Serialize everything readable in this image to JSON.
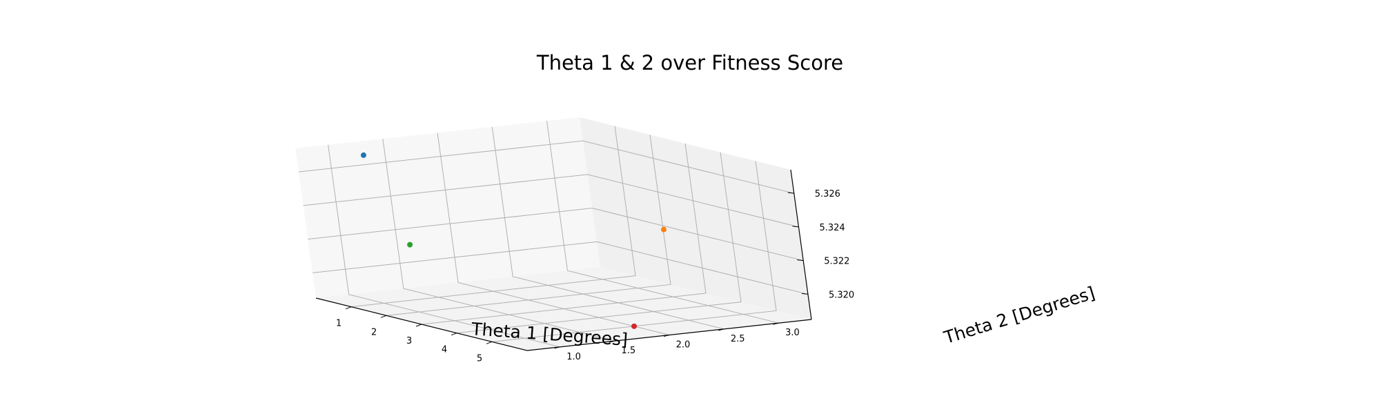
{
  "chart_data": {
    "type": "scatter",
    "projection": "3d",
    "title": "Theta 1 & 2 over Fitness Score",
    "xlabel": "Theta 1 [Degrees]",
    "ylabel": "Theta 2 [Degrees]",
    "zlabel": "",
    "xlim": [
      0,
      6
    ],
    "ylim": [
      0.7,
      3.3
    ],
    "zlim": [
      5.3185,
      5.3274
    ],
    "x_ticks": [
      1,
      2,
      3,
      4,
      5
    ],
    "y_ticks": [
      "1.0",
      "1.5",
      "2.0",
      "2.5",
      "3.0"
    ],
    "z_ticks": [
      "5.320",
      "5.322",
      "5.324",
      "5.326"
    ],
    "grid": true,
    "points": [
      {
        "x": 1,
        "y": 1,
        "z": 5.3273,
        "color": "#1f77b4"
      },
      {
        "x": 3,
        "y": 3,
        "z": 5.3225,
        "color": "#ff7f0e"
      },
      {
        "x": 2,
        "y": 1,
        "z": 5.3225,
        "color": "#2ca02c"
      },
      {
        "x": 5,
        "y": 2,
        "z": 5.3185,
        "color": "#d62728"
      }
    ]
  }
}
